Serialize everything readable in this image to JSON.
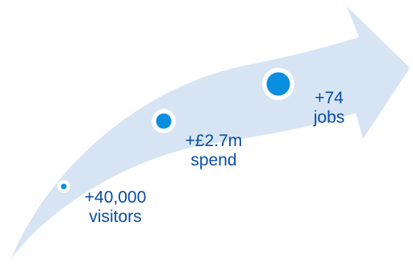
{
  "colors": {
    "arrow_fill": "#d6e4f3",
    "dot_fill": "#0a8fe0",
    "dot_ring": "#ffffff",
    "label_text": "#0a4da3"
  },
  "milestones": [
    {
      "value": "+40,000",
      "unit": "visitors"
    },
    {
      "value": "+£2.7m",
      "unit": "spend"
    },
    {
      "value": "+74",
      "unit": "jobs"
    }
  ]
}
